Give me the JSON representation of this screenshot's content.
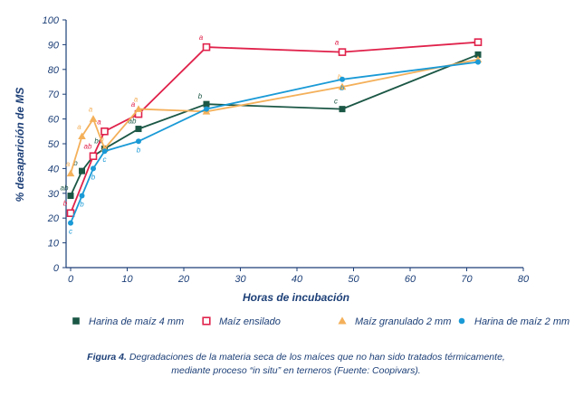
{
  "chart_data": {
    "type": "line",
    "xlabel": "Horas de incubación",
    "ylabel": "% desaparición de MS",
    "xlim": [
      0,
      80
    ],
    "ylim": [
      0,
      100
    ],
    "x_ticks": [
      0,
      10,
      20,
      30,
      40,
      50,
      60,
      70,
      80
    ],
    "y_ticks": [
      0,
      10,
      20,
      30,
      40,
      50,
      60,
      70,
      80,
      90,
      100
    ],
    "grid": false,
    "legend_position": "bottom",
    "series": [
      {
        "name": "Harina de maíz 4 mm",
        "color": "#1b5745",
        "marker": "square-filled",
        "x": [
          0,
          2,
          4,
          6,
          12,
          24,
          48,
          72
        ],
        "y": [
          29,
          39,
          45,
          48,
          56,
          66,
          64,
          86
        ],
        "labels": [
          "ab",
          "b",
          "",
          "bc",
          "ab",
          "b",
          "c",
          ""
        ]
      },
      {
        "name": "Maíz ensilado",
        "color": "#e0224b",
        "marker": "square-open",
        "x": [
          0,
          4,
          6,
          12,
          24,
          48,
          72
        ],
        "y": [
          22,
          45,
          55,
          62,
          89,
          87,
          91
        ],
        "labels": [
          "b",
          "ab",
          "a",
          "a",
          "a",
          "a",
          ""
        ]
      },
      {
        "name": "Maíz granulado 2 mm",
        "color": "#f4b05a",
        "marker": "triangle",
        "x": [
          0,
          2,
          4,
          6,
          12,
          24,
          48,
          72
        ],
        "y": [
          38,
          53,
          60,
          48,
          64,
          63,
          73,
          84
        ],
        "labels": [
          "a",
          "a",
          "a",
          "b",
          "a",
          "",
          "b",
          ""
        ]
      },
      {
        "name": "Harina de maíz 2 mm",
        "color": "#1a9ad6",
        "marker": "circle",
        "x": [
          0,
          2,
          4,
          6,
          12,
          24,
          48,
          72
        ],
        "y": [
          18,
          29,
          40,
          47,
          51,
          64,
          76,
          83
        ],
        "labels": [
          "c",
          "b",
          "b",
          "c",
          "b",
          "",
          "b",
          ""
        ]
      }
    ]
  },
  "caption": {
    "label": "Figura 4.",
    "line1": " Degradaciones de la materia seca de los maíces que no han sido tratados térmicamente,",
    "line2": "mediante proceso “in situ” en terneros (Fuente: Coopivars)."
  }
}
